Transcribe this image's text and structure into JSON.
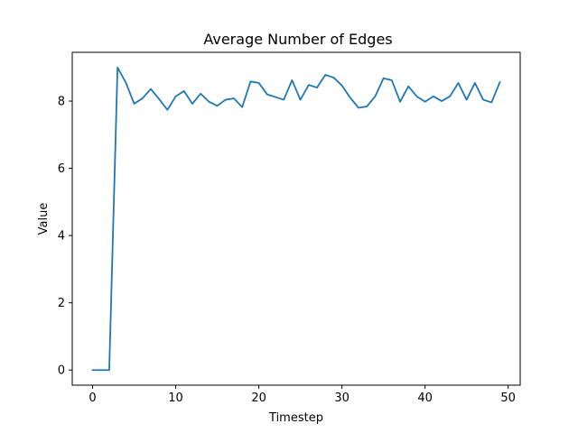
{
  "chart_data": {
    "type": "line",
    "title": "Average Number of Edges",
    "xlabel": "Timestep",
    "ylabel": "Value",
    "xlim": [
      -2.45,
      51.45
    ],
    "ylim": [
      -0.45,
      9.45
    ],
    "xticks": [
      0,
      10,
      20,
      30,
      40,
      50
    ],
    "yticks": [
      0,
      2,
      4,
      6,
      8
    ],
    "grid": false,
    "legend": "none",
    "series": [
      {
        "color": "#1f77b4",
        "x": [
          0,
          1,
          2,
          3,
          4,
          5,
          6,
          7,
          8,
          9,
          10,
          11,
          12,
          13,
          14,
          15,
          16,
          17,
          18,
          19,
          20,
          21,
          22,
          23,
          24,
          25,
          26,
          27,
          28,
          29,
          30,
          31,
          32,
          33,
          34,
          35,
          36,
          37,
          38,
          39,
          40,
          41,
          42,
          43,
          44,
          45,
          46,
          47,
          48,
          49
        ],
        "y": [
          0,
          0,
          0,
          9.0,
          8.55,
          7.92,
          8.08,
          8.36,
          8.06,
          7.74,
          8.14,
          8.3,
          7.92,
          8.22,
          7.98,
          7.86,
          8.04,
          8.08,
          7.82,
          8.58,
          8.54,
          8.2,
          8.12,
          8.04,
          8.62,
          8.04,
          8.48,
          8.4,
          8.78,
          8.7,
          8.46,
          8.1,
          7.8,
          7.84,
          8.14,
          8.68,
          8.62,
          7.98,
          8.44,
          8.14,
          7.98,
          8.14,
          8.0,
          8.14,
          8.54,
          8.04,
          8.54,
          8.04,
          7.96,
          8.56
        ]
      }
    ]
  }
}
